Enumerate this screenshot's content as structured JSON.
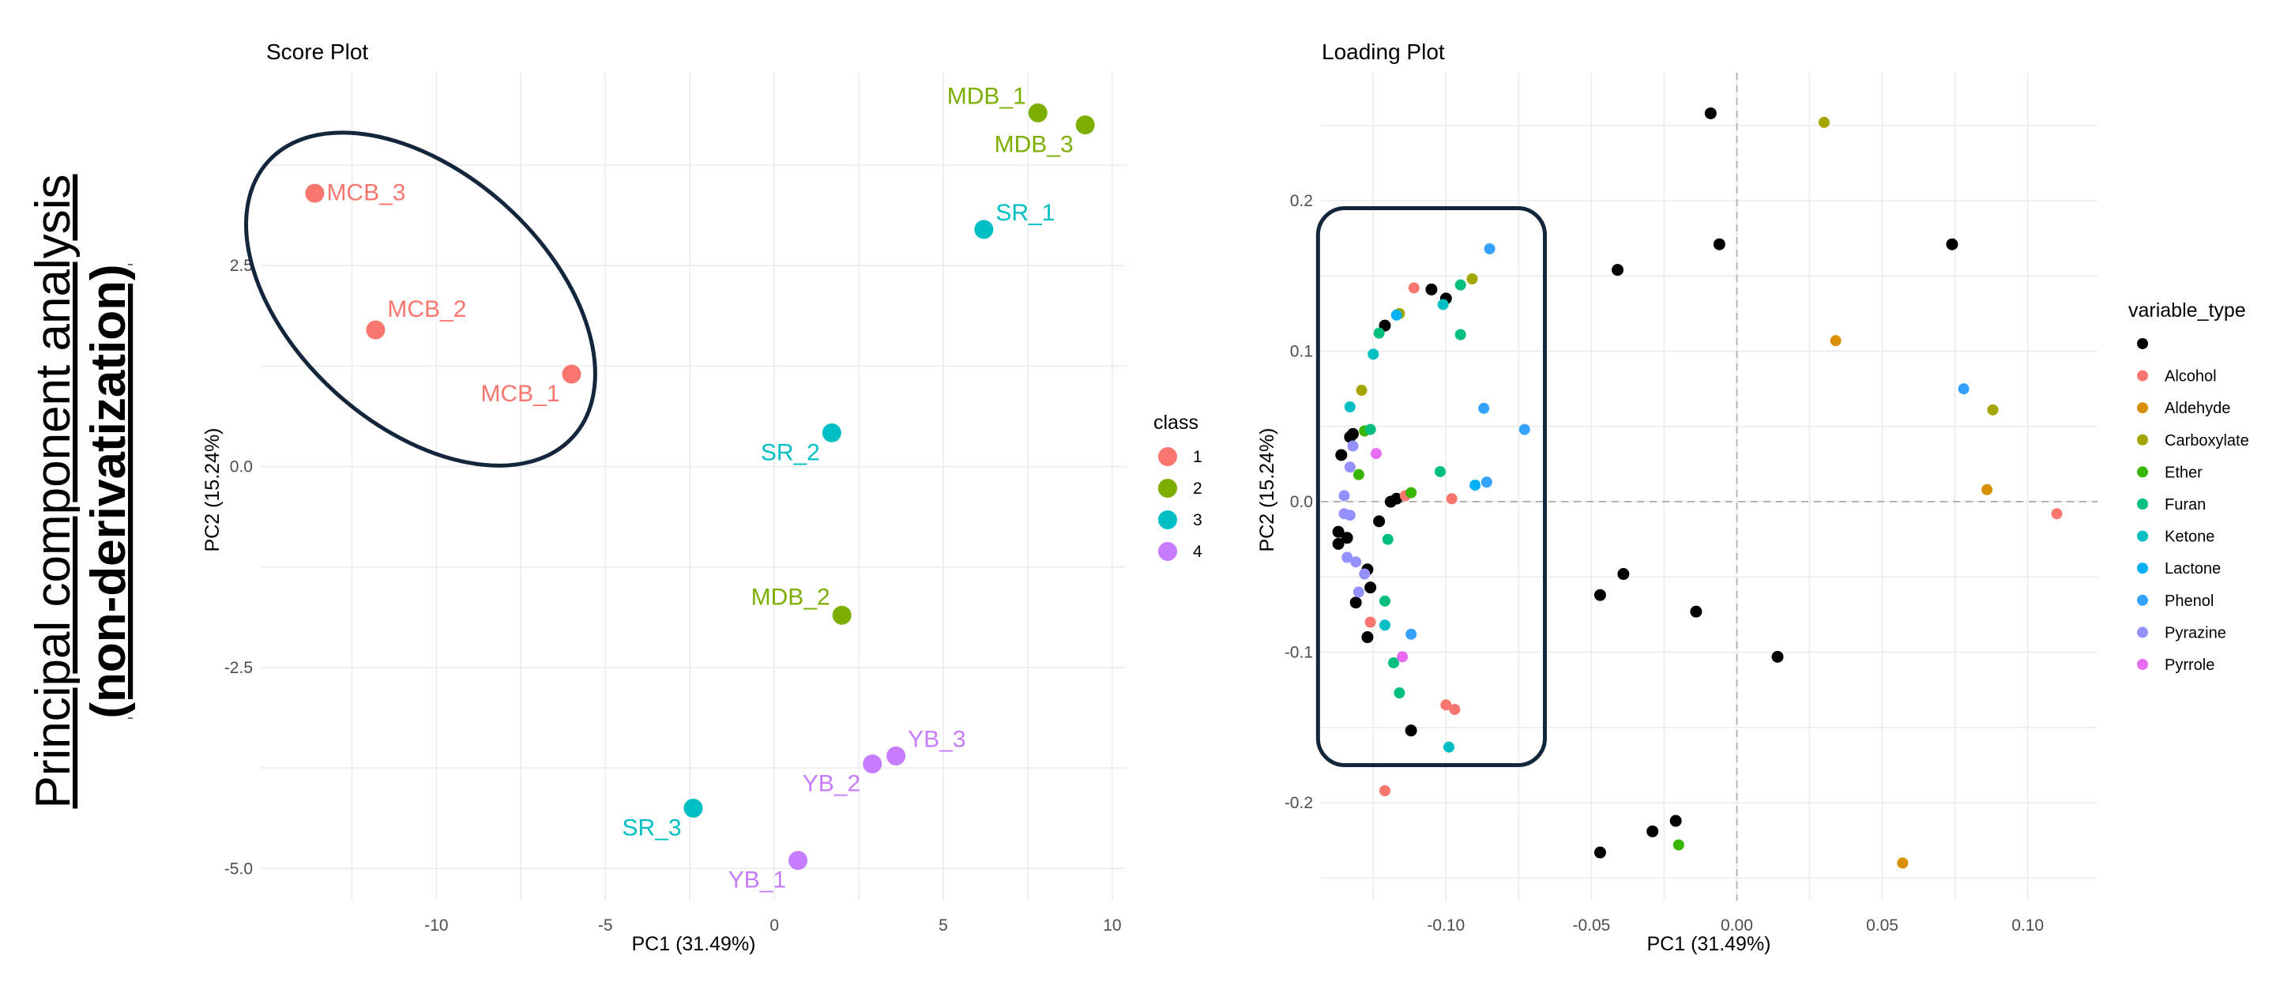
{
  "side_title": {
    "line1": "Principal component analysis",
    "line2": "(non-derivatization)"
  },
  "chart_data": [
    {
      "type": "scatter",
      "title": "Score Plot",
      "xlabel": "PC1 (31.49%)",
      "ylabel": "PC2 (15.24%)",
      "xlim": [
        -15.2,
        10.4
      ],
      "ylim": [
        -5.4,
        4.9
      ],
      "xticks": [
        -10,
        -5,
        0,
        5,
        10
      ],
      "xtick_labels": [
        "-10",
        "-5",
        "0",
        "5",
        "10"
      ],
      "yticks": [
        -5,
        -2.5,
        0,
        2.5
      ],
      "ytick_labels": [
        "-5.0",
        "-2.5",
        "0.0",
        "2.5"
      ],
      "grid": true,
      "legend": {
        "title": "class",
        "placement": "right",
        "entries": [
          {
            "label": "1",
            "color": "#F8766D"
          },
          {
            "label": "2",
            "color": "#7CAE00"
          },
          {
            "label": "3",
            "color": "#00BFC4"
          },
          {
            "label": "4",
            "color": "#C77CFF"
          }
        ]
      },
      "points": [
        {
          "label": "MCB_3",
          "class": "1",
          "x": -13.6,
          "y": 3.4,
          "label_dx": 1.6,
          "label_dy": 0.0
        },
        {
          "label": "MCB_2",
          "class": "1",
          "x": -11.8,
          "y": 1.7,
          "label_dx": 0.6,
          "label_dy": 0.25
        },
        {
          "label": "MCB_1",
          "class": "1",
          "x": -6.0,
          "y": 1.15,
          "label_dx": -0.6,
          "label_dy": -0.25
        },
        {
          "label": "MDB_1",
          "class": "2",
          "x": 7.8,
          "y": 4.4,
          "label_dx": -0.6,
          "label_dy": 0.2
        },
        {
          "label": "MDB_3",
          "class": "2",
          "x": 9.2,
          "y": 4.25,
          "label_dx": -0.6,
          "label_dy": -0.25
        },
        {
          "label": "MDB_2",
          "class": "2",
          "x": 2.0,
          "y": -1.85,
          "label_dx": -0.6,
          "label_dy": 0.22
        },
        {
          "label": "SR_1",
          "class": "3",
          "x": 6.2,
          "y": 2.95,
          "label_dx": 0.6,
          "label_dy": 0.2
        },
        {
          "label": "SR_2",
          "class": "3",
          "x": 1.7,
          "y": 0.42,
          "label_dx": -0.6,
          "label_dy": -0.25
        },
        {
          "label": "SR_3",
          "class": "3",
          "x": -2.4,
          "y": -4.25,
          "label_dx": -0.6,
          "label_dy": -0.25
        },
        {
          "label": "YB_3",
          "class": "4",
          "x": 3.6,
          "y": -3.6,
          "label_dx": 0.6,
          "label_dy": 0.2
        },
        {
          "label": "YB_2",
          "class": "4",
          "x": 2.9,
          "y": -3.7,
          "label_dx": -0.6,
          "label_dy": -0.25
        },
        {
          "label": "YB_1",
          "class": "4",
          "x": 0.7,
          "y": -4.9,
          "label_dx": -0.6,
          "label_dy": -0.25
        }
      ],
      "annotation": {
        "shape": "ellipse",
        "around": [
          "MCB_3",
          "MCB_2",
          "MCB_1"
        ],
        "color": "#13263b"
      }
    },
    {
      "type": "scatter",
      "title": "Loading Plot",
      "xlabel": "PC1 (31.49%)",
      "ylabel": "PC2 (15.24%)",
      "xlim": [
        -0.143,
        0.124
      ],
      "ylim": [
        -0.265,
        0.285
      ],
      "xticks": [
        -0.1,
        -0.05,
        0.0,
        0.05,
        0.1
      ],
      "xtick_labels": [
        "-0.10",
        "-0.05",
        "0.00",
        "0.05",
        "0.10"
      ],
      "yticks": [
        -0.2,
        -0.1,
        0.0,
        0.1,
        0.2
      ],
      "ytick_labels": [
        "-0.2",
        "-0.1",
        "0.0",
        "0.1",
        "0.2"
      ],
      "grid": true,
      "reference_lines": {
        "x": 0,
        "y": 0,
        "style": "dashed"
      },
      "legend": {
        "title": "variable_type",
        "placement": "right",
        "entries": [
          {
            "label": "",
            "color": "#000000"
          },
          {
            "label": "Alcohol",
            "color": "#F8766D"
          },
          {
            "label": "Aldehyde",
            "color": "#D89000"
          },
          {
            "label": "Carboxylate",
            "color": "#A3A500"
          },
          {
            "label": "Ether",
            "color": "#39B600"
          },
          {
            "label": "Furan",
            "color": "#00BF7D"
          },
          {
            "label": "Ketone",
            "color": "#00BFC4"
          },
          {
            "label": "Lactone",
            "color": "#00B0F6"
          },
          {
            "label": "Phenol",
            "color": "#35A2FF"
          },
          {
            "label": "Pyrazine",
            "color": "#9590FF"
          },
          {
            "label": "Pyrrole",
            "color": "#E76BF3"
          }
        ]
      },
      "series": [
        {
          "name": "",
          "color": "#000000",
          "points": [
            [
              -0.009,
              0.258
            ],
            [
              -0.006,
              0.171
            ],
            [
              0.074,
              0.171
            ],
            [
              -0.041,
              0.154
            ],
            [
              -0.105,
              0.141
            ],
            [
              -0.1,
              0.135
            ],
            [
              -0.121,
              0.117
            ],
            [
              -0.132,
              0.045
            ],
            [
              -0.136,
              0.031
            ],
            [
              -0.117,
              0.002
            ],
            [
              -0.119,
              0.0
            ],
            [
              -0.123,
              -0.013
            ],
            [
              -0.137,
              -0.02
            ],
            [
              -0.134,
              -0.024
            ],
            [
              -0.137,
              -0.028
            ],
            [
              -0.127,
              -0.045
            ],
            [
              -0.047,
              -0.062
            ],
            [
              -0.126,
              -0.057
            ],
            [
              -0.131,
              -0.067
            ],
            [
              -0.014,
              -0.073
            ],
            [
              -0.039,
              -0.048
            ],
            [
              0.014,
              -0.103
            ],
            [
              -0.127,
              -0.09
            ],
            [
              -0.112,
              -0.152
            ],
            [
              -0.021,
              -0.212
            ],
            [
              -0.029,
              -0.219
            ],
            [
              -0.047,
              -0.233
            ],
            [
              -0.133,
              0.043
            ]
          ]
        },
        {
          "name": "Alcohol",
          "color": "#F8766D",
          "points": [
            [
              -0.111,
              0.142
            ],
            [
              -0.114,
              0.004
            ],
            [
              -0.098,
              0.002
            ],
            [
              -0.126,
              -0.08
            ],
            [
              -0.1,
              -0.135
            ],
            [
              -0.097,
              -0.138
            ],
            [
              -0.121,
              -0.192
            ],
            [
              0.11,
              -0.008
            ]
          ]
        },
        {
          "name": "Aldehyde",
          "color": "#D89000",
          "points": [
            [
              0.034,
              0.107
            ],
            [
              0.086,
              0.008
            ],
            [
              0.057,
              -0.24
            ]
          ]
        },
        {
          "name": "Carboxylate",
          "color": "#A3A500",
          "points": [
            [
              0.03,
              0.252
            ],
            [
              -0.091,
              0.148
            ],
            [
              -0.116,
              0.125
            ],
            [
              -0.129,
              0.074
            ],
            [
              0.088,
              0.061
            ]
          ]
        },
        {
          "name": "Ether",
          "color": "#39B600",
          "points": [
            [
              -0.128,
              0.047
            ],
            [
              -0.13,
              0.018
            ],
            [
              -0.112,
              0.006
            ],
            [
              -0.02,
              -0.228
            ]
          ]
        },
        {
          "name": "Furan",
          "color": "#00BF7D",
          "points": [
            [
              -0.095,
              0.144
            ],
            [
              -0.123,
              0.112
            ],
            [
              -0.095,
              0.111
            ],
            [
              -0.126,
              0.048
            ],
            [
              -0.102,
              0.02
            ],
            [
              -0.121,
              -0.066
            ],
            [
              -0.12,
              -0.025
            ],
            [
              -0.118,
              -0.107
            ],
            [
              -0.116,
              -0.127
            ]
          ]
        },
        {
          "name": "Ketone",
          "color": "#00BFC4",
          "points": [
            [
              -0.101,
              0.131
            ],
            [
              -0.125,
              0.098
            ],
            [
              -0.133,
              0.063
            ],
            [
              -0.121,
              -0.082
            ],
            [
              -0.099,
              -0.163
            ]
          ]
        },
        {
          "name": "Lactone",
          "color": "#00B0F6",
          "points": [
            [
              -0.117,
              0.124
            ],
            [
              -0.09,
              0.011
            ]
          ]
        },
        {
          "name": "Phenol",
          "color": "#35A2FF",
          "points": [
            [
              -0.085,
              0.168
            ],
            [
              -0.087,
              0.062
            ],
            [
              -0.073,
              0.048
            ],
            [
              -0.086,
              0.013
            ],
            [
              -0.112,
              -0.088
            ],
            [
              0.078,
              0.075
            ]
          ]
        },
        {
          "name": "Pyrazine",
          "color": "#9590FF",
          "points": [
            [
              -0.132,
              0.037
            ],
            [
              -0.133,
              0.023
            ],
            [
              -0.135,
              0.004
            ],
            [
              -0.135,
              -0.008
            ],
            [
              -0.133,
              -0.009
            ],
            [
              -0.134,
              -0.037
            ],
            [
              -0.131,
              -0.04
            ],
            [
              -0.128,
              -0.048
            ],
            [
              -0.13,
              -0.06
            ]
          ]
        },
        {
          "name": "Pyrrole",
          "color": "#E76BF3",
          "points": [
            [
              -0.124,
              0.032
            ],
            [
              -0.115,
              -0.103
            ]
          ]
        }
      ],
      "annotation": {
        "shape": "rounded-rectangle",
        "x_range": [
          -0.144,
          -0.066
        ],
        "y_range": [
          -0.175,
          0.195
        ],
        "color": "#13263b"
      }
    }
  ]
}
